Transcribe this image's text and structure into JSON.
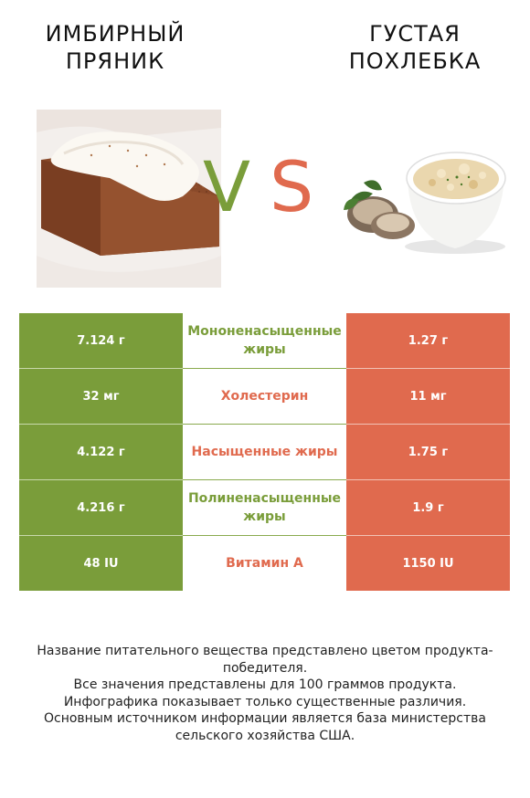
{
  "titles": {
    "left": "ИМБИРНЫЙ ПРЯНИК",
    "right": "ГУСТАЯ ПОХЛЕБКА"
  },
  "vs": {
    "v": "V",
    "s": "S"
  },
  "colors": {
    "left": "#7a9d3a",
    "right": "#e06a4e"
  },
  "rows": [
    {
      "left": "7.124 г",
      "label": "Мононенасыщенные жиры",
      "right": "1.27 г",
      "winner": "left"
    },
    {
      "left": "32 мг",
      "label": "Холестерин",
      "right": "11 мг",
      "winner": "right"
    },
    {
      "left": "4.122 г",
      "label": "Насыщенные жиры",
      "right": "1.75 г",
      "winner": "right"
    },
    {
      "left": "4.216 г",
      "label": "Полиненасыщенные жиры",
      "right": "1.9 г",
      "winner": "left"
    },
    {
      "left": "48 IU",
      "label": "Витамин А",
      "right": "1150 IU",
      "winner": "right"
    }
  ],
  "footer": {
    "line1": "Название питательного вещества представлено цветом продукта-победителя.",
    "line2": "Все значения представлены для 100 граммов продукта.",
    "line3": "Инфографика показывает только существенные различия.",
    "line4": "Основным источником информации является база министерства сельского хозяйства США."
  }
}
